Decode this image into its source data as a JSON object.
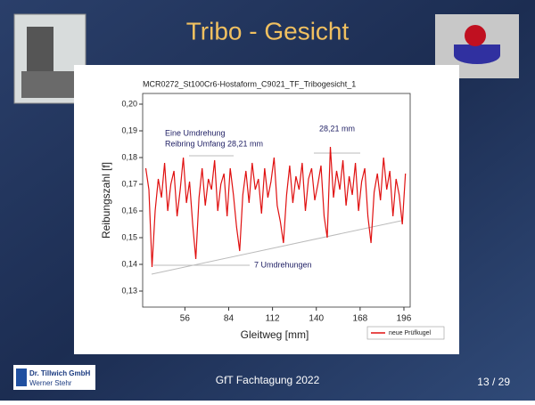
{
  "slide_title": "Tribo - Gesicht",
  "footer": "GfT Fachtagung 2022",
  "page_number": "13 / 29",
  "logo": {
    "company": "Dr. Tillwich GmbH",
    "name": "Werner Stehr"
  },
  "chart_data": {
    "type": "line",
    "title": "MCR0272_St100Cr6-Hostaform_C9021_TF_Tribogesicht_1",
    "xlabel": "Gleitweg [mm]",
    "ylabel": "Reibungszahl [f]",
    "xlim": [
      29,
      200
    ],
    "xticks": [
      56,
      84,
      112,
      140,
      168,
      196
    ],
    "ylim": [
      0.124,
      0.204
    ],
    "yticks": [
      {
        "value": 0.13,
        "label": "0,13"
      },
      {
        "value": 0.14,
        "label": "0,14"
      },
      {
        "value": 0.15,
        "label": "0,15"
      },
      {
        "value": 0.16,
        "label": "0,16"
      },
      {
        "value": 0.17,
        "label": "0,17"
      },
      {
        "value": 0.18,
        "label": "0,18"
      },
      {
        "value": 0.19,
        "label": "0,19"
      },
      {
        "value": 0.2,
        "label": "0,20"
      }
    ],
    "annotations": [
      "Eine Umdrehung",
      "Reibring Umfang 28,21 mm",
      "28,21 mm",
      "7 Umdrehungen"
    ],
    "legend": "lower right",
    "x": [
      31,
      33,
      35,
      37,
      39,
      41,
      43,
      45,
      47,
      49,
      51,
      53,
      55,
      57,
      59,
      61,
      63,
      65,
      67,
      69,
      71,
      73,
      75,
      77,
      79,
      81,
      83,
      85,
      87,
      89,
      91,
      93,
      95,
      97,
      99,
      101,
      103,
      105,
      107,
      109,
      111,
      113,
      115,
      117,
      119,
      121,
      123,
      125,
      127,
      129,
      131,
      133,
      135,
      137,
      139,
      141,
      143,
      145,
      147,
      149,
      151,
      153,
      155,
      157,
      159,
      161,
      163,
      165,
      167,
      169,
      171,
      173,
      175,
      177,
      179,
      181,
      183,
      185,
      187,
      189,
      191,
      193,
      195,
      197
    ],
    "series": [
      {
        "name": "neue Prüfkugel",
        "color": "#e01010",
        "values": [
          0.176,
          0.168,
          0.139,
          0.16,
          0.172,
          0.165,
          0.178,
          0.16,
          0.17,
          0.175,
          0.158,
          0.168,
          0.18,
          0.163,
          0.171,
          0.155,
          0.142,
          0.165,
          0.176,
          0.162,
          0.172,
          0.168,
          0.179,
          0.16,
          0.17,
          0.174,
          0.158,
          0.176,
          0.166,
          0.154,
          0.145,
          0.166,
          0.175,
          0.163,
          0.178,
          0.168,
          0.172,
          0.159,
          0.176,
          0.165,
          0.171,
          0.18,
          0.162,
          0.156,
          0.148,
          0.166,
          0.177,
          0.163,
          0.173,
          0.168,
          0.178,
          0.16,
          0.172,
          0.176,
          0.164,
          0.17,
          0.177,
          0.158,
          0.15,
          0.184,
          0.165,
          0.175,
          0.168,
          0.179,
          0.162,
          0.173,
          0.166,
          0.178,
          0.16,
          0.171,
          0.176,
          0.158,
          0.148,
          0.167,
          0.174,
          0.164,
          0.18,
          0.168,
          0.175,
          0.158,
          0.172,
          0.166,
          0.155,
          0.174
        ]
      }
    ]
  }
}
